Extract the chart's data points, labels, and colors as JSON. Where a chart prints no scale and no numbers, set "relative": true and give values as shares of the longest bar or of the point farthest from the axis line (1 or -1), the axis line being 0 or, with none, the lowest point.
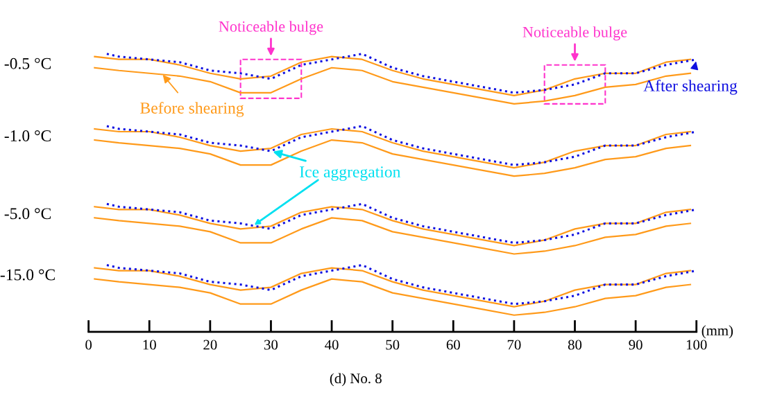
{
  "chart_data": {
    "type": "line",
    "relative": true,
    "xlabel": "(mm)",
    "xlim": [
      0,
      100
    ],
    "xticks": [
      0,
      10,
      20,
      30,
      40,
      50,
      60,
      70,
      80,
      90,
      100
    ],
    "grid": false,
    "legend": false,
    "marker": "none",
    "tick_labels": "x",
    "x": [
      1,
      5,
      10,
      15,
      20,
      25,
      30,
      35,
      40,
      45,
      50,
      55,
      60,
      65,
      70,
      75,
      80,
      85,
      90,
      95,
      99
    ],
    "series": [
      {
        "color": "#ff9a1a",
        "line_style": "solid",
        "values": [
          0.99,
          0.98,
          0.98,
          0.96,
          0.93,
          0.91,
          0.92,
          0.97,
          0.99,
          0.98,
          0.94,
          0.91,
          0.89,
          0.87,
          0.85,
          0.87,
          0.91,
          0.93,
          0.93,
          0.97,
          0.98
        ]
      },
      {
        "color": "#ff9a1a",
        "line_style": "solid",
        "values": [
          0.95,
          0.94,
          0.93,
          0.92,
          0.9,
          0.86,
          0.86,
          0.91,
          0.95,
          0.94,
          0.9,
          0.88,
          0.86,
          0.84,
          0.82,
          0.83,
          0.85,
          0.88,
          0.89,
          0.92,
          0.93
        ]
      },
      {
        "color": "#1010e0",
        "line_style": "dotted",
        "x": [
          3,
          5,
          10,
          15,
          20,
          25,
          30,
          35,
          40,
          45,
          50,
          55,
          60,
          65,
          70,
          75,
          80,
          85,
          90,
          95,
          100
        ],
        "values": [
          1.0,
          0.99,
          0.98,
          0.97,
          0.94,
          0.93,
          0.91,
          0.96,
          0.98,
          1.0,
          0.95,
          0.92,
          0.9,
          0.88,
          0.86,
          0.87,
          0.89,
          0.93,
          0.93,
          0.96,
          0.98
        ]
      },
      {
        "color": "#ff9a1a",
        "line_style": "solid",
        "values": [
          0.73,
          0.72,
          0.72,
          0.7,
          0.67,
          0.65,
          0.66,
          0.71,
          0.73,
          0.72,
          0.68,
          0.65,
          0.63,
          0.61,
          0.59,
          0.61,
          0.65,
          0.67,
          0.67,
          0.71,
          0.72
        ]
      },
      {
        "color": "#ff9a1a",
        "line_style": "solid",
        "values": [
          0.69,
          0.68,
          0.67,
          0.66,
          0.64,
          0.6,
          0.6,
          0.65,
          0.69,
          0.68,
          0.64,
          0.62,
          0.6,
          0.58,
          0.56,
          0.57,
          0.59,
          0.62,
          0.63,
          0.66,
          0.67
        ]
      },
      {
        "color": "#1010e0",
        "line_style": "dotted",
        "x": [
          3,
          5,
          10,
          15,
          20,
          25,
          30,
          35,
          40,
          45,
          50,
          55,
          60,
          65,
          70,
          75,
          80,
          85,
          90,
          95,
          100
        ],
        "values": [
          0.74,
          0.73,
          0.72,
          0.71,
          0.68,
          0.67,
          0.65,
          0.7,
          0.72,
          0.74,
          0.69,
          0.66,
          0.64,
          0.62,
          0.6,
          0.61,
          0.63,
          0.67,
          0.67,
          0.7,
          0.72
        ]
      },
      {
        "color": "#ff9a1a",
        "line_style": "solid",
        "values": [
          0.45,
          0.44,
          0.44,
          0.42,
          0.39,
          0.37,
          0.38,
          0.43,
          0.45,
          0.44,
          0.4,
          0.37,
          0.35,
          0.33,
          0.31,
          0.33,
          0.37,
          0.39,
          0.39,
          0.43,
          0.44
        ]
      },
      {
        "color": "#ff9a1a",
        "line_style": "solid",
        "values": [
          0.41,
          0.4,
          0.39,
          0.38,
          0.36,
          0.32,
          0.32,
          0.37,
          0.41,
          0.4,
          0.36,
          0.34,
          0.32,
          0.3,
          0.28,
          0.29,
          0.31,
          0.34,
          0.35,
          0.38,
          0.39
        ]
      },
      {
        "color": "#1010e0",
        "line_style": "dotted",
        "x": [
          3,
          5,
          10,
          15,
          20,
          25,
          30,
          35,
          40,
          45,
          50,
          55,
          60,
          65,
          70,
          75,
          80,
          85,
          90,
          95,
          100
        ],
        "values": [
          0.46,
          0.45,
          0.44,
          0.43,
          0.4,
          0.39,
          0.37,
          0.42,
          0.44,
          0.46,
          0.41,
          0.38,
          0.36,
          0.34,
          0.32,
          0.33,
          0.35,
          0.39,
          0.39,
          0.42,
          0.44
        ]
      },
      {
        "color": "#ff9a1a",
        "line_style": "solid",
        "values": [
          0.23,
          0.22,
          0.22,
          0.2,
          0.17,
          0.15,
          0.16,
          0.21,
          0.23,
          0.22,
          0.18,
          0.15,
          0.13,
          0.11,
          0.09,
          0.11,
          0.15,
          0.17,
          0.17,
          0.21,
          0.22
        ]
      },
      {
        "color": "#ff9a1a",
        "line_style": "solid",
        "values": [
          0.19,
          0.18,
          0.17,
          0.16,
          0.14,
          0.1,
          0.1,
          0.15,
          0.19,
          0.18,
          0.14,
          0.12,
          0.1,
          0.08,
          0.06,
          0.07,
          0.09,
          0.12,
          0.13,
          0.16,
          0.17
        ]
      },
      {
        "color": "#1010e0",
        "line_style": "dotted",
        "x": [
          3,
          5,
          10,
          15,
          20,
          25,
          30,
          35,
          40,
          45,
          50,
          55,
          60,
          65,
          70,
          75,
          80,
          85,
          90,
          95,
          100
        ],
        "values": [
          0.24,
          0.23,
          0.22,
          0.21,
          0.18,
          0.17,
          0.15,
          0.2,
          0.22,
          0.24,
          0.19,
          0.16,
          0.14,
          0.12,
          0.1,
          0.11,
          0.13,
          0.17,
          0.17,
          0.2,
          0.22
        ]
      }
    ],
    "annotations": [
      "-0.5 °C",
      "-1.0 °C",
      "-5.0 °C",
      "-15.0 °C",
      {
        "text": "Noticeable bulge",
        "x": 30,
        "y": 0.91
      },
      {
        "text": "Noticeable bulge",
        "x": 80,
        "y": 0.89
      },
      {
        "text": "Before shearing",
        "x": 12,
        "y": 0.93
      },
      {
        "text": "After shearing",
        "x": 100,
        "y": 0.98
      },
      {
        "text": "Ice aggregation",
        "x": 30,
        "y": 0.65
      },
      "(d) No. 8"
    ]
  }
}
